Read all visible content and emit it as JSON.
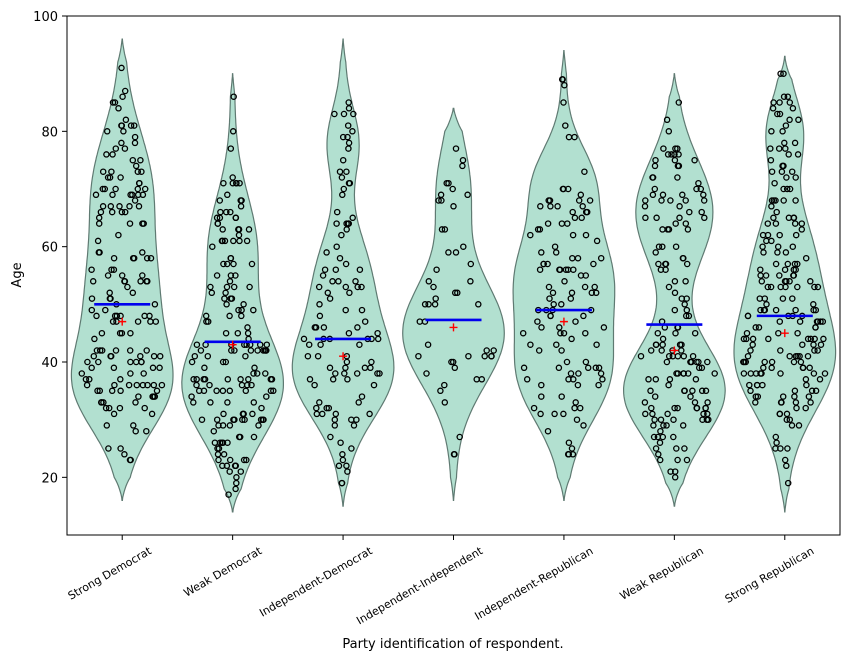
{
  "chart_data": {
    "type": "violin",
    "xlabel": "Party identification of respondent.",
    "ylabel": "Age",
    "ylim": [
      10,
      100
    ],
    "yticks": [
      20,
      40,
      60,
      80,
      100
    ],
    "categories": [
      "Strong Democrat",
      "Weak Democrat",
      "Independent-Democrat",
      "Independent-Independent",
      "Independent-Republican",
      "Weak Republican",
      "Strong Republican"
    ],
    "means": [
      50,
      43.5,
      44,
      47.3,
      49,
      46.5,
      48
    ],
    "medians": [
      47,
      43,
      41,
      46,
      47,
      42,
      45
    ],
    "ranges": [
      [
        16,
        96
      ],
      [
        14,
        90
      ],
      [
        15,
        96
      ],
      [
        16,
        84
      ],
      [
        16,
        94
      ],
      [
        15,
        90
      ],
      [
        14,
        93
      ]
    ],
    "approx_point_counts": [
      170,
      170,
      110,
      50,
      120,
      160,
      200
    ],
    "colors": {
      "violin_fill": "#b2e0d0",
      "violin_edge": "#5f7a72",
      "mean_line": "#0000ee",
      "median_marker": "#ff0000",
      "point_edge": "#000000"
    }
  }
}
